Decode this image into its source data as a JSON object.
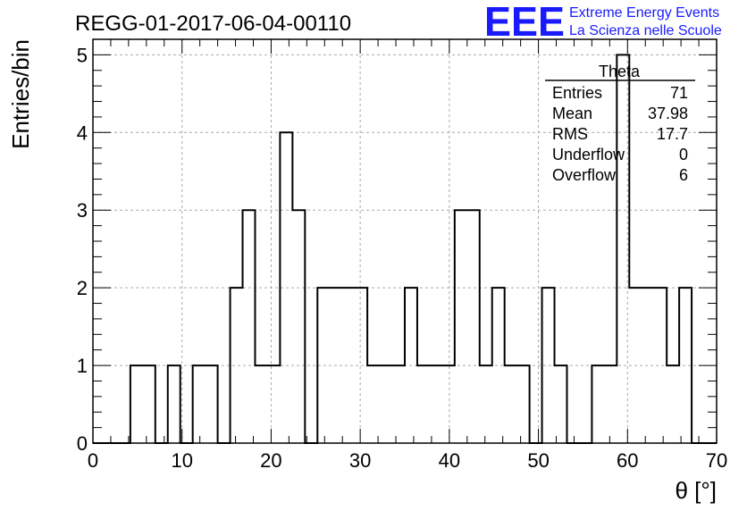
{
  "chart_data": {
    "type": "bar",
    "title": "REGG-01-2017-06-04-00110",
    "xlabel": "θ [°]",
    "ylabel": "Entries/bin",
    "xlim": [
      0,
      70
    ],
    "ylim": [
      0,
      5.2
    ],
    "bin_width": 1.4,
    "x_ticks": [
      "0",
      "10",
      "20",
      "30",
      "40",
      "50",
      "60",
      "70"
    ],
    "y_ticks": [
      "0",
      "1",
      "2",
      "3",
      "4",
      "5"
    ],
    "grid": true,
    "values": [
      0,
      0,
      0,
      1,
      1,
      0,
      1,
      0,
      1,
      1,
      0,
      2,
      3,
      1,
      1,
      4,
      3,
      0,
      2,
      2,
      2,
      2,
      1,
      1,
      1,
      2,
      1,
      1,
      1,
      3,
      3,
      1,
      2,
      1,
      1,
      0,
      2,
      1,
      0,
      0,
      1,
      1,
      5,
      2,
      2,
      2,
      1,
      2,
      0,
      0
    ],
    "stats_box": {
      "name": "Theta",
      "rows": [
        {
          "label": "Entries",
          "value": "71"
        },
        {
          "label": "Mean",
          "value": "37.98"
        },
        {
          "label": "RMS",
          "value": "17.7"
        },
        {
          "label": "Underflow",
          "value": "0"
        },
        {
          "label": "Overflow",
          "value": "6"
        }
      ]
    }
  },
  "logo": {
    "mark": "EEE",
    "line1": "Extreme Energy Events",
    "line2": "La Scienza nelle Scuole",
    "color": "#1a1aff"
  }
}
